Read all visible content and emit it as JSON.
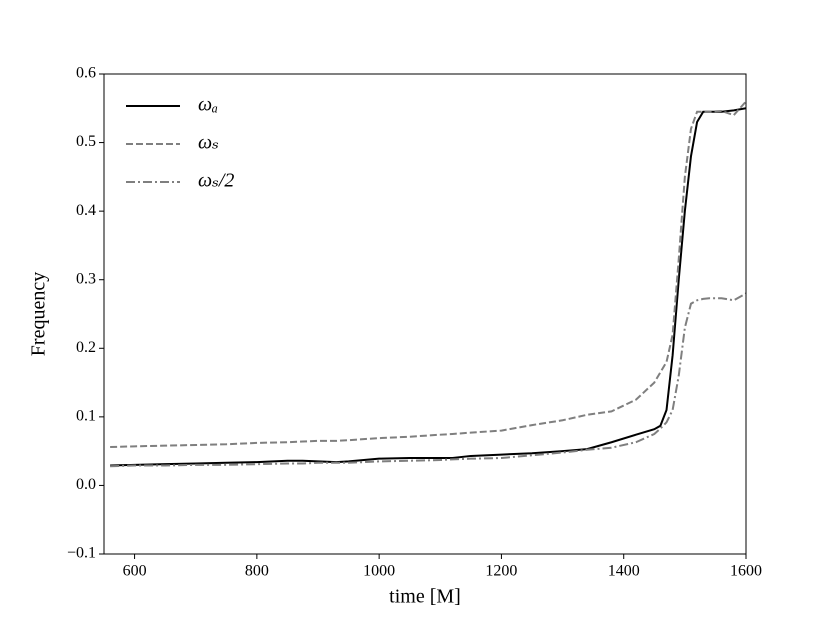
{
  "chart_data": {
    "type": "line",
    "xlabel": "time [M]",
    "ylabel": "Frequency",
    "x": [
      560,
      600,
      650,
      700,
      750,
      800,
      850,
      875,
      900,
      930,
      950,
      1000,
      1050,
      1100,
      1120,
      1150,
      1200,
      1250,
      1300,
      1340,
      1380,
      1420,
      1450,
      1460,
      1470,
      1480,
      1490,
      1500,
      1510,
      1520,
      1530,
      1540,
      1560,
      1580,
      1600
    ],
    "series": [
      {
        "name": "ωₐ",
        "color": "#000000",
        "linestyle": "solid",
        "values": [
          0.029,
          0.03,
          0.031,
          0.032,
          0.033,
          0.034,
          0.036,
          0.036,
          0.035,
          0.034,
          0.035,
          0.039,
          0.04,
          0.04,
          0.04,
          0.043,
          0.045,
          0.047,
          0.05,
          0.053,
          0.063,
          0.074,
          0.082,
          0.087,
          0.11,
          0.19,
          0.3,
          0.4,
          0.48,
          0.53,
          0.545,
          0.545,
          0.545,
          0.547,
          0.55
        ]
      },
      {
        "name": "ωₛ",
        "color": "#7f7f7f",
        "linestyle": "dashed",
        "values": [
          0.056,
          0.057,
          0.058,
          0.059,
          0.06,
          0.062,
          0.063,
          0.064,
          0.065,
          0.065,
          0.066,
          0.069,
          0.071,
          0.074,
          0.075,
          0.077,
          0.08,
          0.088,
          0.095,
          0.103,
          0.108,
          0.125,
          0.15,
          0.165,
          0.18,
          0.22,
          0.33,
          0.45,
          0.52,
          0.545,
          0.545,
          0.545,
          0.546,
          0.54,
          0.56
        ]
      },
      {
        "name": "ωₛ/2",
        "color": "#7f7f7f",
        "linestyle": "dashdot",
        "values": [
          0.028,
          0.029,
          0.029,
          0.03,
          0.03,
          0.031,
          0.032,
          0.032,
          0.033,
          0.033,
          0.033,
          0.035,
          0.036,
          0.037,
          0.038,
          0.039,
          0.04,
          0.044,
          0.048,
          0.052,
          0.055,
          0.063,
          0.075,
          0.083,
          0.092,
          0.11,
          0.16,
          0.23,
          0.265,
          0.27,
          0.272,
          0.273,
          0.273,
          0.27,
          0.28
        ]
      }
    ],
    "xlim": [
      550,
      1600
    ],
    "xticks": [
      600,
      800,
      1000,
      1200,
      1400,
      1600
    ],
    "ylim": [
      -0.1,
      0.6
    ],
    "yticks": [
      {
        "value": -0.1,
        "label": "−0.1"
      },
      {
        "value": 0,
        "label": "0.0"
      },
      0.1,
      0.2,
      0.3,
      0.4,
      0.5,
      0.6
    ],
    "legend": "upper left",
    "grid": false
  }
}
